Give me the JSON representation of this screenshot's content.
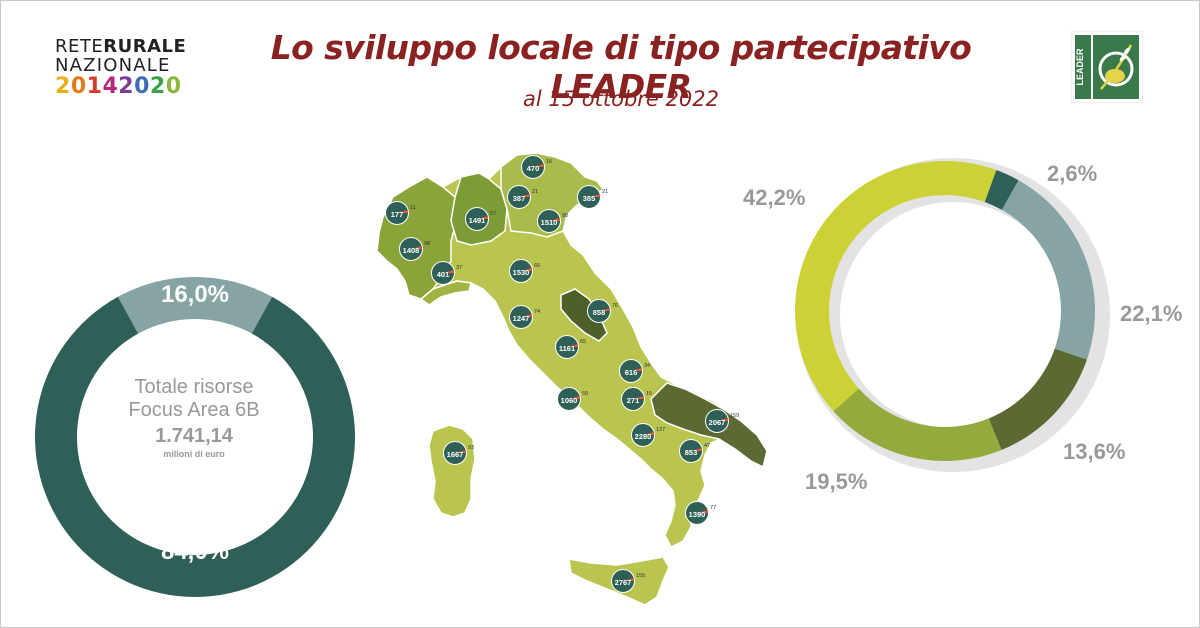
{
  "header": {
    "logo_rrn": {
      "line1_a": "RETE",
      "line1_b": "RURALE",
      "line2": "NAZIONALE",
      "line3": [
        "2",
        "0",
        "1",
        "4",
        "2",
        "0",
        "2",
        "0"
      ],
      "line3_colors": [
        "#e8b21b",
        "#e07b1a",
        "#d6392b",
        "#b5297a",
        "#7a3d97",
        "#3e6eb5",
        "#3aa04a",
        "#8cb63c"
      ]
    },
    "title": "Lo sviluppo locale di tipo partecipativo LEADER",
    "subtitle": "al 15 ottobre 2022",
    "logo_leader_text": "LEADER"
  },
  "colors": {
    "dark_teal": "#2e6058",
    "grey_blue": "#86a4a3",
    "olive_dark": "#5b6a33",
    "olive": "#93aa3c",
    "yellow_green": "#ccd235",
    "light_green": "#b8c556",
    "track": "#e3e3e3",
    "label_grey": "#999999",
    "title_red": "#8b2222"
  },
  "chart_data": [
    {
      "type": "pie",
      "variant": "donut",
      "labels": [
        "16,0%",
        "84,0%"
      ],
      "values": [
        16.0,
        84.0
      ],
      "colors": [
        "#86a4a3",
        "#2e6058"
      ],
      "center": {
        "line1": "Totale risorse",
        "line2": "Focus Area 6B",
        "value": "1.741,14",
        "unit": "milioni di euro"
      }
    },
    {
      "type": "pie",
      "variant": "donut",
      "labels": [
        "2,6%",
        "22,1%",
        "13,6%",
        "19,5%",
        "42,2%"
      ],
      "values": [
        2.6,
        22.1,
        13.6,
        19.5,
        42.2
      ],
      "colors": [
        "#2e6058",
        "#86a4a3",
        "#5b6a33",
        "#93aa3c",
        "#ccd235"
      ]
    },
    {
      "type": "map",
      "markers": [
        {
          "value": "470",
          "small": "16"
        },
        {
          "value": "387",
          "small": "21"
        },
        {
          "value": "385",
          "small": "21"
        },
        {
          "value": "177",
          "small": "11"
        },
        {
          "value": "1491",
          "small": "57"
        },
        {
          "value": "1510",
          "small": "98"
        },
        {
          "value": "1408",
          "small": "98"
        },
        {
          "value": "401",
          "small": "37"
        },
        {
          "value": "1530",
          "small": "66"
        },
        {
          "value": "858",
          "small": "76"
        },
        {
          "value": "1247",
          "small": "74"
        },
        {
          "value": "1161",
          "small": "65"
        },
        {
          "value": "616",
          "small": "34"
        },
        {
          "value": "1060",
          "small": "59"
        },
        {
          "value": "271",
          "small": "15"
        },
        {
          "value": "2067",
          "small": "159"
        },
        {
          "value": "2280",
          "small": "127"
        },
        {
          "value": "853",
          "small": "47"
        },
        {
          "value": "1667",
          "small": "93"
        },
        {
          "value": "1390",
          "small": "77"
        },
        {
          "value": "2767",
          "small": "155"
        }
      ]
    }
  ]
}
